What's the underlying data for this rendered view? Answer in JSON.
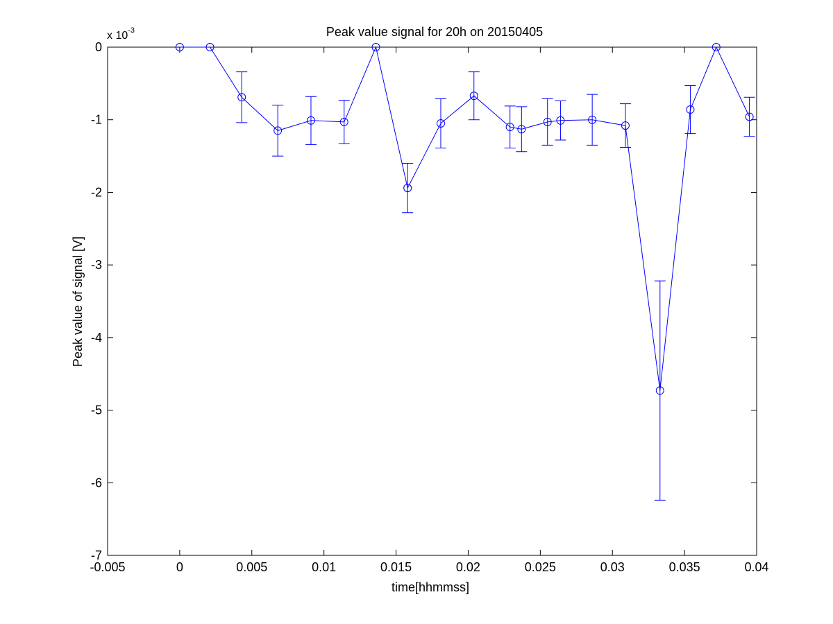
{
  "chart_data": {
    "type": "line",
    "title": "Peak value signal for 20h on 20150405",
    "xlabel": "time[hhmmss]",
    "ylabel": "Peak value of signal [V]",
    "y_exponent_label": "x 10",
    "y_exponent_power": "-3",
    "xlim": [
      -0.005,
      0.04
    ],
    "ylim": [
      -7,
      0
    ],
    "x_ticks": [
      -0.005,
      0,
      0.005,
      0.01,
      0.015,
      0.02,
      0.025,
      0.03,
      0.035,
      0.04
    ],
    "x_tick_labels": [
      "-0.005",
      "0",
      "0.005",
      "0.01",
      "0.015",
      "0.02",
      "0.025",
      "0.03",
      "0.035",
      "0.04"
    ],
    "y_ticks": [
      0,
      -1,
      -2,
      -3,
      -4,
      -5,
      -6,
      -7
    ],
    "y_tick_labels": [
      "0",
      "-1",
      "-2",
      "-3",
      "-4",
      "-5",
      "-6",
      "-7"
    ],
    "grid": false,
    "line_color": "#0000ff",
    "marker_color": "#0000ff",
    "marker": "circle",
    "series": [
      {
        "x": [
          0.0,
          0.0021,
          0.0043,
          0.0068,
          0.0091,
          0.0114,
          0.0136,
          0.0158,
          0.0181,
          0.0204,
          0.0229,
          0.0237,
          0.0255,
          0.0264,
          0.0286,
          0.0309,
          0.0333,
          0.0354,
          0.0372,
          0.0395
        ],
        "y": [
          0.0,
          0.0,
          -0.69,
          -1.15,
          -1.01,
          -1.03,
          0.0,
          -1.94,
          -1.05,
          -0.67,
          -1.1,
          -1.13,
          -1.03,
          -1.01,
          -1.0,
          -1.08,
          -4.73,
          -0.86,
          0.0,
          -0.96
        ],
        "err": [
          null,
          null,
          0.35,
          0.35,
          0.33,
          0.3,
          null,
          0.34,
          0.34,
          0.33,
          0.29,
          0.31,
          0.32,
          0.27,
          0.35,
          0.3,
          1.51,
          0.33,
          null,
          0.27
        ]
      }
    ]
  }
}
